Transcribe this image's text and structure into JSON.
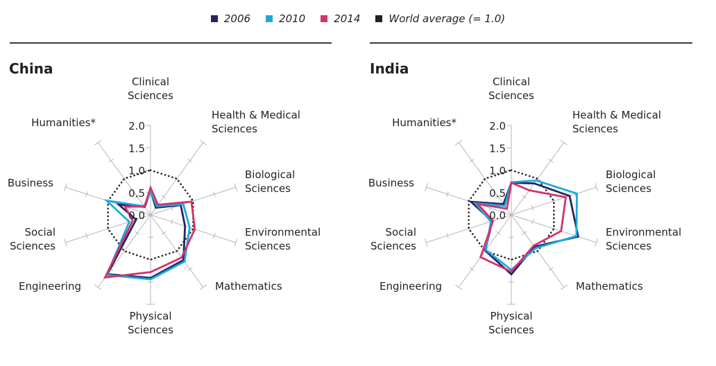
{
  "legend": [
    {
      "label": "2006",
      "color": "#25255e"
    },
    {
      "label": "2010",
      "color": "#1ba9e1"
    },
    {
      "label": "2014",
      "color": "#d4326c"
    },
    {
      "label": "World average (= 1.0)",
      "color": "#231f20"
    }
  ],
  "chart_data": [
    {
      "type": "radar",
      "title": "China",
      "axes": [
        "Clinical Sciences",
        "Health & Medical Sciences",
        "Biological Sciences",
        "Environmental Sciences",
        "Mathematics",
        "Physical Sciences",
        "Engineering",
        "Social Sciences",
        "Business",
        "Humanities*"
      ],
      "axis_label_lines": [
        [
          "Clinical",
          "Sciences"
        ],
        [
          "Health & Medical",
          "Sciences"
        ],
        [
          "Biological",
          "Sciences"
        ],
        [
          "Environmental",
          "Sciences"
        ],
        [
          "Mathematics"
        ],
        [
          "Physical",
          "Sciences"
        ],
        [
          "Engineering"
        ],
        [
          "Social",
          "Sciences"
        ],
        [
          "Business"
        ],
        [
          "Humanities*"
        ]
      ],
      "ticks": [
        "0.0",
        "0.5",
        "1.0",
        "1.5",
        "2.0"
      ],
      "rlim": [
        0,
        2.0
      ],
      "reference": {
        "name": "World average (= 1.0)",
        "value": 1.0,
        "style": "dotted"
      },
      "series": [
        {
          "name": "2006",
          "color": "#25255e",
          "values": [
            0.54,
            0.2,
            0.71,
            0.81,
            1.25,
            1.41,
            1.64,
            0.34,
            0.75,
            0.22
          ]
        },
        {
          "name": "2010",
          "color": "#1ba9e1",
          "values": [
            0.52,
            0.24,
            0.77,
            0.92,
            1.29,
            1.44,
            1.66,
            0.5,
            1.03,
            0.24
          ]
        },
        {
          "name": "2014",
          "color": "#d4326c",
          "values": [
            0.61,
            0.28,
            0.96,
            1.04,
            1.18,
            1.28,
            1.73,
            0.42,
            0.6,
            0.23
          ]
        }
      ]
    },
    {
      "type": "radar",
      "title": "India",
      "axes": [
        "Clinical Sciences",
        "Health & Medical Sciences",
        "Biological Sciences",
        "Environmental Sciences",
        "Mathematics",
        "Physical Sciences",
        "Engineering",
        "Social Sciences",
        "Business",
        "Humanities*"
      ],
      "axis_label_lines": [
        [
          "Clinical",
          "Sciences"
        ],
        [
          "Health & Medical",
          "Sciences"
        ],
        [
          "Biological",
          "Sciences"
        ],
        [
          "Environmental",
          "Sciences"
        ],
        [
          "Mathematics"
        ],
        [
          "Physical",
          "Sciences"
        ],
        [
          "Engineering"
        ],
        [
          "Social",
          "Sciences"
        ],
        [
          "Business"
        ],
        [
          "Humanities*"
        ]
      ],
      "ticks": [
        "0.0",
        "0.5",
        "1.0",
        "1.5",
        "2.0"
      ],
      "rlim": [
        0,
        2.0
      ],
      "reference": {
        "name": "World average (= 1.0)",
        "value": 1.0,
        "style": "dotted"
      },
      "series": [
        {
          "name": "2006",
          "color": "#25255e",
          "values": [
            0.72,
            0.87,
            1.37,
            1.57,
            0.88,
            1.33,
            0.99,
            0.45,
            0.95,
            0.3
          ]
        },
        {
          "name": "2010",
          "color": "#1ba9e1",
          "values": [
            0.73,
            0.95,
            1.54,
            1.53,
            0.92,
            1.23,
            0.97,
            0.48,
            0.85,
            0.25
          ]
        },
        {
          "name": "2014",
          "color": "#d4326c",
          "values": [
            0.72,
            0.68,
            1.28,
            1.17,
            0.85,
            1.27,
            1.17,
            0.43,
            0.79,
            0.17
          ]
        }
      ]
    }
  ]
}
